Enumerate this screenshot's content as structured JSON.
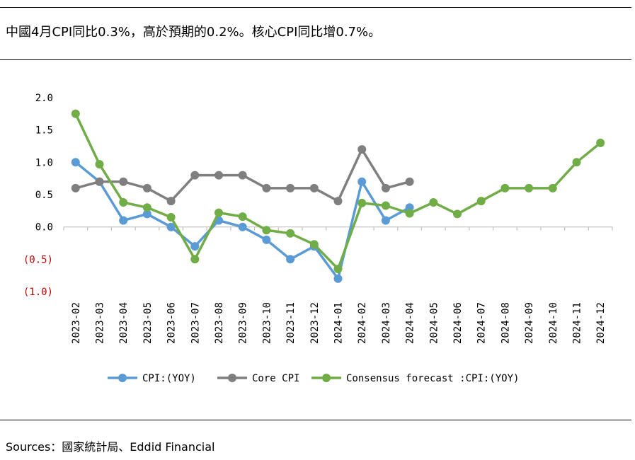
{
  "headline": "中國4月CPI同比0.3%，高於預期的0.2%。核心CPI同比增0.7%。",
  "source": "Sources：國家統計局、Eddid Financial",
  "colors": {
    "cpi": "#5b9bd5",
    "core": "#7f7f7f",
    "consensus": "#70ad47",
    "negative_tick": "#c00000",
    "axis": "#bfbfbf"
  },
  "chart_data": {
    "type": "line",
    "title": "",
    "xlabel": "",
    "ylabel": "",
    "ylim": [
      -1.0,
      2.0
    ],
    "y_ticks": [
      {
        "value": 2.0,
        "label": "2.0"
      },
      {
        "value": 1.5,
        "label": "1.5"
      },
      {
        "value": 1.0,
        "label": "1.0"
      },
      {
        "value": 0.5,
        "label": "0.5"
      },
      {
        "value": 0.0,
        "label": "0.0"
      },
      {
        "value": -0.5,
        "label": "(0.5)"
      },
      {
        "value": -1.0,
        "label": "(1.0)"
      }
    ],
    "grid": false,
    "legend_position": "bottom",
    "categories": [
      "2023-02",
      "2023-03",
      "2023-04",
      "2023-05",
      "2023-06",
      "2023-07",
      "2023-08",
      "2023-09",
      "2023-10",
      "2023-11",
      "2023-12",
      "2024-01",
      "2024-02",
      "2024-03",
      "2024-04",
      "2024-05",
      "2024-06",
      "2024-07",
      "2024-08",
      "2024-09",
      "2024-10",
      "2024-11",
      "2024-12"
    ],
    "series": [
      {
        "name": "CPI:(YOY)",
        "color": "#5b9bd5",
        "values": [
          1.0,
          0.7,
          0.1,
          0.2,
          0.0,
          -0.3,
          0.1,
          0.0,
          -0.2,
          -0.5,
          -0.3,
          -0.8,
          0.7,
          0.1,
          0.3,
          null,
          null,
          null,
          null,
          null,
          null,
          null,
          null
        ]
      },
      {
        "name": "Core CPI",
        "color": "#7f7f7f",
        "values": [
          0.6,
          0.7,
          0.7,
          0.6,
          0.4,
          0.8,
          0.8,
          0.8,
          0.6,
          0.6,
          0.6,
          0.4,
          1.2,
          0.6,
          0.7,
          null,
          null,
          null,
          null,
          null,
          null,
          null,
          null
        ]
      },
      {
        "name": "Consensus forecast :CPI:(YOY)",
        "color": "#70ad47",
        "values": [
          1.75,
          0.97,
          0.38,
          0.3,
          0.15,
          -0.5,
          0.22,
          0.16,
          -0.05,
          -0.1,
          -0.27,
          -0.65,
          0.37,
          0.33,
          0.21,
          0.38,
          0.2,
          0.4,
          0.6,
          0.6,
          0.6,
          1.0,
          1.3
        ]
      }
    ]
  }
}
